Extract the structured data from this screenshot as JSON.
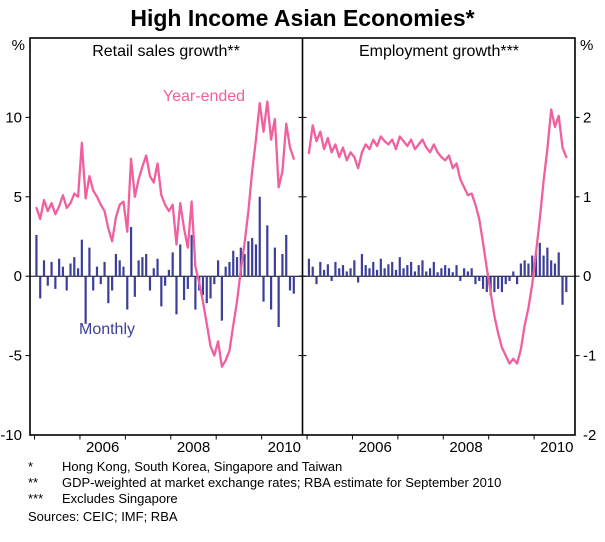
{
  "title": "High Income Asian Economies*",
  "colors": {
    "line_pink": "#f0609e",
    "bar_blue": "#3c3f99",
    "axis": "#000000",
    "background": "#ffffff"
  },
  "axes": {
    "left_unit": "%",
    "right_unit": "%",
    "left_ticks": [
      10,
      5,
      0,
      -5,
      -10
    ],
    "right_ticks": [
      2,
      1,
      0,
      -1,
      -2
    ],
    "left_ylim": [
      -10,
      15
    ],
    "right_ylim": [
      -2,
      3
    ],
    "x_year_labels": [
      2006,
      2008,
      2010
    ],
    "x_year_ticks": [
      2005,
      2006,
      2007,
      2008,
      2009,
      2010
    ],
    "x_domain": [
      2004.9,
      2010.9
    ]
  },
  "panels": [
    {
      "title": "Retail sales growth**",
      "line_label": "Year-ended",
      "bar_label": "Monthly"
    },
    {
      "title": "Employment growth***"
    }
  ],
  "footnotes": [
    {
      "marker": "*",
      "text": "Hong Kong, South Korea, Singapore and Taiwan"
    },
    {
      "marker": "**",
      "text": "GDP-weighted at market exchange rates; RBA estimate for September 2010"
    },
    {
      "marker": "***",
      "text": "Excludes Singapore"
    }
  ],
  "sources_line": "Sources: CEIC; IMF; RBA",
  "chart_data": [
    {
      "type": "line+bar",
      "title": "Retail sales growth**",
      "frequency": "monthly",
      "x_start": "2005-01",
      "x_end": "2010-09",
      "ylabel": "%",
      "axis_side": "left",
      "ylim": [
        -10,
        15
      ],
      "axis_labels": [
        10,
        5,
        0,
        -5,
        -10
      ],
      "series": [
        {
          "name": "Year-ended",
          "type": "line",
          "color": "#f0609e",
          "values": [
            4.3,
            3.6,
            4.8,
            4.1,
            4.6,
            3.9,
            4.4,
            5.1,
            4.3,
            4.6,
            5.2,
            5.0,
            8.4,
            4.9,
            6.3,
            5.4,
            5.0,
            4.5,
            4.1,
            3.0,
            2.2,
            3.7,
            4.5,
            4.7,
            2.8,
            7.4,
            5.0,
            6.1,
            6.9,
            7.6,
            6.3,
            5.9,
            7.1,
            5.1,
            4.5,
            4.1,
            4.5,
            2.0,
            4.6,
            3.0,
            1.8,
            4.7,
            0.6,
            -0.4,
            -1.6,
            -3.0,
            -4.4,
            -5.0,
            -4.1,
            -5.7,
            -5.3,
            -4.7,
            -3.1,
            -1.6,
            0.4,
            2.1,
            4.1,
            6.6,
            8.6,
            10.9,
            9.1,
            11.0,
            8.6,
            9.9,
            5.6,
            6.6,
            9.6,
            8.1,
            7.4
          ]
        },
        {
          "name": "Monthly",
          "type": "bar",
          "color": "#3c3f99",
          "values": [
            2.6,
            -1.4,
            1.0,
            -0.6,
            0.9,
            -0.8,
            1.1,
            0.6,
            -0.9,
            0.8,
            1.2,
            0.5,
            2.3,
            -3.0,
            1.8,
            -0.9,
            0.6,
            -0.5,
            0.9,
            -1.7,
            -0.9,
            1.4,
            1.0,
            0.6,
            -2.1,
            3.1,
            -1.3,
            1.0,
            1.2,
            1.4,
            -0.9,
            0.5,
            1.1,
            -1.9,
            -0.6,
            0.4,
            1.5,
            -2.4,
            2.0,
            -1.5,
            -0.8,
            2.6,
            -2.1,
            -0.9,
            -1.2,
            -1.7,
            -1.4,
            -0.5,
            1.0,
            -2.8,
            0.6,
            0.9,
            1.6,
            1.2,
            1.8,
            1.4,
            2.2,
            2.4,
            2.0,
            5.0,
            -1.6,
            3.2,
            -2.1,
            1.8,
            -3.2,
            1.4,
            2.6,
            -0.9,
            -1.1
          ]
        }
      ]
    },
    {
      "type": "line+bar",
      "title": "Employment growth***",
      "frequency": "monthly",
      "x_start": "2005-01",
      "x_end": "2010-09",
      "ylabel": "%",
      "axis_side": "right",
      "ylim": [
        -2,
        3
      ],
      "axis_labels": [
        2,
        1,
        0,
        -1,
        -2
      ],
      "series": [
        {
          "name": "Year-ended",
          "type": "line",
          "color": "#f0609e",
          "values": [
            1.55,
            1.9,
            1.7,
            1.82,
            1.6,
            1.74,
            1.56,
            1.66,
            1.5,
            1.62,
            1.46,
            1.56,
            1.5,
            1.36,
            1.56,
            1.66,
            1.6,
            1.72,
            1.64,
            1.76,
            1.7,
            1.66,
            1.72,
            1.6,
            1.76,
            1.7,
            1.64,
            1.72,
            1.6,
            1.66,
            1.72,
            1.62,
            1.56,
            1.66,
            1.56,
            1.5,
            1.46,
            1.52,
            1.36,
            1.42,
            1.22,
            1.12,
            1.02,
            1.04,
            0.9,
            0.72,
            0.42,
            0.1,
            -0.2,
            -0.5,
            -0.72,
            -0.9,
            -1.0,
            -1.1,
            -1.04,
            -1.1,
            -0.92,
            -0.62,
            -0.4,
            -0.1,
            0.3,
            0.72,
            1.2,
            1.6,
            2.1,
            1.88,
            2.02,
            1.62,
            1.5
          ]
        },
        {
          "name": "Monthly",
          "type": "bar",
          "color": "#3c3f99",
          "values": [
            0.22,
            0.12,
            -0.1,
            0.18,
            0.08,
            0.15,
            -0.06,
            0.18,
            0.1,
            0.14,
            0.06,
            0.1,
            0.2,
            -0.08,
            0.28,
            0.14,
            0.1,
            0.18,
            0.08,
            0.22,
            0.1,
            0.15,
            0.18,
            0.08,
            0.24,
            0.1,
            0.14,
            0.18,
            0.06,
            0.14,
            0.2,
            0.06,
            0.1,
            0.18,
            0.05,
            0.1,
            0.14,
            0.1,
            0.05,
            0.14,
            -0.06,
            0.1,
            0.06,
            0.1,
            -0.1,
            -0.06,
            -0.16,
            -0.2,
            -0.24,
            -0.2,
            -0.16,
            -0.2,
            -0.1,
            -0.06,
            0.06,
            -0.1,
            0.16,
            0.2,
            0.16,
            0.26,
            0.3,
            0.42,
            0.26,
            0.36,
            0.2,
            0.16,
            0.3,
            -0.36,
            -0.2
          ]
        }
      ]
    }
  ]
}
